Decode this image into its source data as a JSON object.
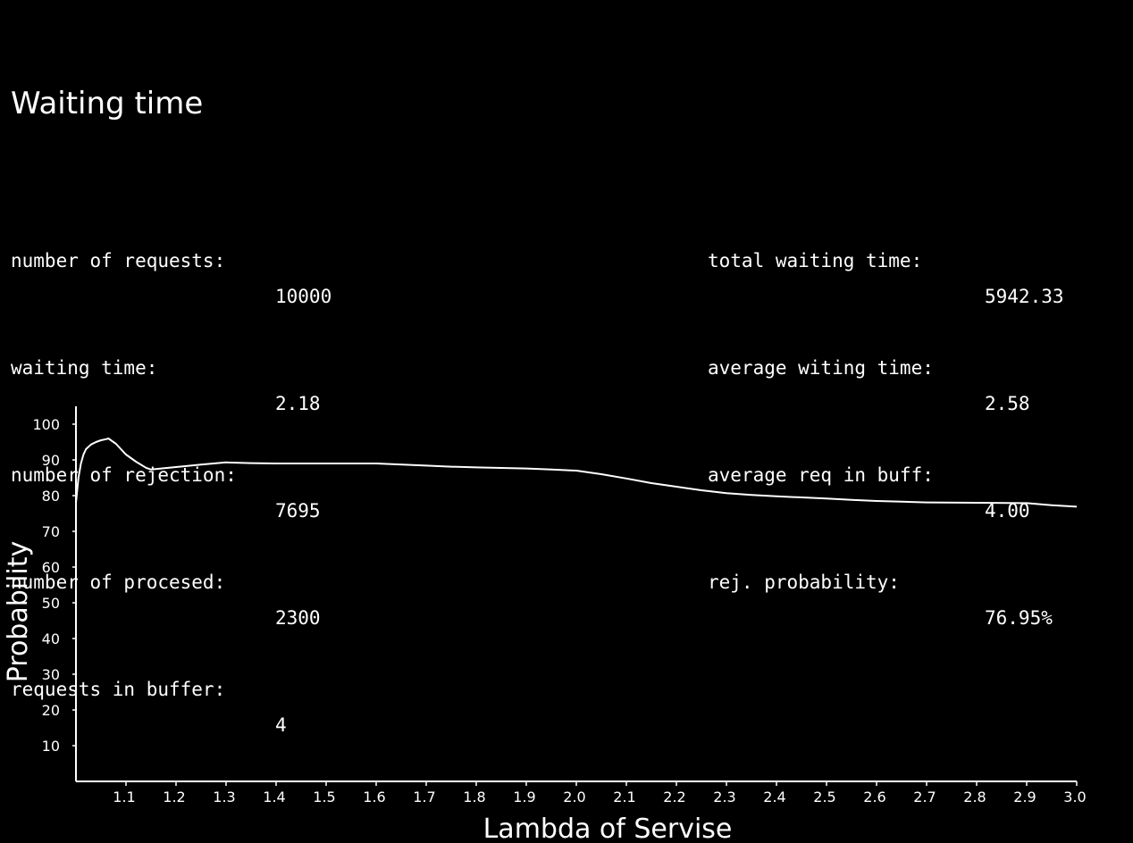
{
  "title": "Waiting time",
  "stats_left": [
    {
      "label": "number of requests:",
      "value": "10000"
    },
    {
      "label": "waiting time:",
      "value": "2.18"
    },
    {
      "label": "number of rejection:",
      "value": "7695"
    },
    {
      "label": "number of procesed:",
      "value": "2300"
    },
    {
      "label": "requests in buffer:",
      "value": "4"
    }
  ],
  "stats_right": [
    {
      "label": "total waiting time:",
      "value": "5942.33"
    },
    {
      "label": "average witing time:",
      "value": "2.58"
    },
    {
      "label": "average req in buff:",
      "value": "4.00"
    },
    {
      "label": "rej. probability:",
      "value": "76.95%"
    }
  ],
  "colors": {
    "background": "#000000",
    "foreground": "#ffffff"
  },
  "chart_data": {
    "type": "line",
    "xlabel": "Lambda of Servise",
    "ylabel": "Probability",
    "xlim": [
      1.0,
      3.0
    ],
    "ylim": [
      0,
      100
    ],
    "xticks": [
      "1.1",
      "1.2",
      "1.3",
      "1.4",
      "1.5",
      "1.6",
      "1.7",
      "1.8",
      "1.9",
      "2.0",
      "2.1",
      "2.2",
      "2.3",
      "2.4",
      "2.5",
      "2.6",
      "2.7",
      "2.8",
      "2.9",
      "3.0"
    ],
    "yticks": [
      "10",
      "20",
      "30",
      "40",
      "50",
      "60",
      "70",
      "80",
      "90",
      "100"
    ],
    "grid": false,
    "series": [
      {
        "x": [
          1.0,
          1.005,
          1.01,
          1.015,
          1.02,
          1.03,
          1.04,
          1.05,
          1.06,
          1.065,
          1.08,
          1.1,
          1.12,
          1.14,
          1.15,
          1.2,
          1.25,
          1.3,
          1.35,
          1.4,
          1.5,
          1.6,
          1.7,
          1.75,
          1.8,
          1.9,
          1.95,
          2.0,
          2.05,
          2.1,
          2.15,
          2.2,
          2.25,
          2.3,
          2.35,
          2.4,
          2.5,
          2.55,
          2.6,
          2.65,
          2.7,
          2.8,
          2.9,
          2.95,
          3.0
        ],
        "y": [
          78,
          85,
          89,
          91.5,
          93,
          94.3,
          95,
          95.5,
          95.8,
          96,
          94.5,
          91.5,
          89.5,
          87.8,
          87.3,
          88,
          88.7,
          89.3,
          89.1,
          89,
          89,
          89,
          88.4,
          88.1,
          87.9,
          87.6,
          87.3,
          87,
          86,
          84.8,
          83.5,
          82.5,
          81.5,
          80.7,
          80.2,
          79.8,
          79.2,
          78.8,
          78.5,
          78.3,
          78.1,
          78,
          77.9,
          77.3,
          76.9
        ]
      }
    ]
  }
}
